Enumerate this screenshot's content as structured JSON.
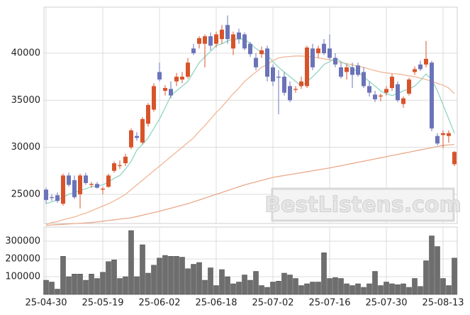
{
  "chart_data": [
    {
      "type": "candlestick",
      "watermark": "BestListens.com",
      "up_color": "#d9532a",
      "down_color": "#6b74b8",
      "ylim": [
        21900,
        44900
      ],
      "yticks": [
        25000,
        30000,
        35000,
        40000
      ],
      "grid": true,
      "open": [
        25500,
        24700,
        24900,
        24000,
        27000,
        26500,
        25000,
        27000,
        26000,
        26100,
        25500,
        25800,
        27500,
        28000,
        28300,
        30000,
        31200,
        30500,
        32500,
        34000,
        38000,
        36000,
        36200,
        37000,
        37200,
        37500,
        40500,
        41000,
        41000,
        41800,
        41000,
        41500,
        43000,
        40500,
        42200,
        42000,
        41000,
        39500,
        39900,
        40500,
        38500,
        37500,
        37500,
        36500,
        36100,
        36500,
        36500,
        40500,
        40000,
        41000,
        40500,
        39500,
        38500,
        38000,
        38500,
        38700,
        38000,
        36500,
        35600,
        35400,
        35800,
        36300,
        36700,
        34600,
        35700,
        38000,
        38800,
        38800,
        39000,
        31200,
        31300,
        31200,
        28200
      ],
      "high": [
        25700,
        25000,
        25200,
        27200,
        27300,
        27000,
        27200,
        27300,
        26300,
        26300,
        25800,
        27200,
        28500,
        28600,
        29300,
        32000,
        31600,
        33200,
        34700,
        36800,
        39000,
        36600,
        37000,
        37900,
        38000,
        39500,
        41000,
        41800,
        42000,
        42200,
        42300,
        43000,
        44000,
        42300,
        42600,
        42200,
        41200,
        40000,
        40700,
        40800,
        38800,
        38200,
        38000,
        37000,
        36500,
        37500,
        40800,
        41000,
        40800,
        41500,
        42000,
        40000,
        39000,
        38800,
        39000,
        39000,
        38500,
        37000,
        36000,
        35700,
        36500,
        37800,
        37000,
        35400,
        37400,
        38600,
        39200,
        41300,
        39200,
        31500,
        31800,
        31800,
        29600
      ],
      "low": [
        24000,
        24300,
        24100,
        23800,
        25800,
        24500,
        23500,
        26000,
        25700,
        25600,
        25000,
        25700,
        27300,
        27700,
        28000,
        29800,
        30700,
        30300,
        32200,
        33800,
        37000,
        35500,
        35200,
        36500,
        36800,
        37300,
        39800,
        40500,
        38500,
        40300,
        40600,
        41000,
        41000,
        39800,
        41000,
        40300,
        39600,
        38200,
        39500,
        37000,
        36500,
        33500,
        35500,
        34800,
        35800,
        36200,
        36300,
        38200,
        39500,
        39800,
        39300,
        38500,
        37300,
        37200,
        36300,
        37500,
        36300,
        35400,
        34800,
        34900,
        35500,
        36000,
        34800,
        34200,
        35500,
        37700,
        38100,
        38500,
        31700,
        30200,
        29900,
        30500,
        28000
      ],
      "close": [
        24400,
        24600,
        24300,
        27000,
        26000,
        24700,
        27000,
        26200,
        26100,
        25700,
        25600,
        27000,
        28300,
        28100,
        29000,
        31800,
        31000,
        33000,
        34500,
        36500,
        37200,
        36300,
        35500,
        37500,
        37500,
        39000,
        40000,
        41600,
        41800,
        40800,
        42000,
        42500,
        41500,
        42000,
        41500,
        40500,
        39900,
        38500,
        40300,
        37500,
        37000,
        37400,
        35800,
        35000,
        36200,
        37000,
        40600,
        38500,
        40500,
        40000,
        39500,
        38800,
        37500,
        38500,
        37700,
        37700,
        36500,
        35800,
        35100,
        35500,
        36200,
        37500,
        35000,
        35200,
        37200,
        38300,
        38300,
        39400,
        32000,
        30400,
        31500,
        31500,
        29500
      ],
      "lines": [
        {
          "color": "#e9a98a",
          "values": [
            21700,
            21740,
            21780,
            21810,
            21850,
            21890,
            21920,
            21960,
            22000,
            22070,
            22140,
            22210,
            22290,
            22360,
            22430,
            22500,
            22640,
            22780,
            22920,
            23060,
            23200,
            23360,
            23520,
            23680,
            23840,
            24000,
            24200,
            24400,
            24600,
            24800,
            25000,
            25200,
            25400,
            25600,
            25800,
            26000,
            26160,
            26320,
            26480,
            26640,
            26800,
            26900,
            27000,
            27100,
            27200,
            27300,
            27400,
            27500,
            27600,
            27700,
            27800,
            27920,
            28040,
            28160,
            28280,
            28400,
            28520,
            28640,
            28760,
            28880,
            29000,
            29120,
            29240,
            29360,
            29480,
            29600,
            29720,
            29840,
            29960,
            30080,
            30200,
            30250,
            30300
          ]
        },
        {
          "color": "#f0b696",
          "values": [
            21800,
            22000,
            22100,
            22300,
            22450,
            22600,
            22800,
            23000,
            23250,
            23500,
            23750,
            24000,
            24300,
            24650,
            25000,
            25500,
            26000,
            26500,
            27000,
            27500,
            28000,
            28500,
            29000,
            29500,
            30000,
            30500,
            31000,
            31700,
            32300,
            33000,
            33700,
            34300,
            35000,
            35700,
            36300,
            37000,
            37500,
            38000,
            38500,
            38800,
            39200,
            39500,
            39600,
            39650,
            39700,
            39700,
            39650,
            39600,
            39500,
            39400,
            39300,
            39150,
            39000,
            38900,
            38750,
            38600,
            38500,
            38300,
            38150,
            38000,
            37900,
            37850,
            37800,
            37700,
            37600,
            37500,
            37350,
            37200,
            37000,
            36800,
            36600,
            36300,
            35700
          ]
        },
        {
          "color": "#8fd6c4",
          "values": [
            24000,
            24200,
            24400,
            24700,
            25000,
            25200,
            25400,
            25600,
            25800,
            25900,
            26000,
            26300,
            26700,
            27000,
            27700,
            28500,
            29700,
            30300,
            31000,
            32000,
            33000,
            34200,
            35500,
            36000,
            36500,
            37000,
            38000,
            39000,
            39600,
            40200,
            40800,
            41000,
            41300,
            41500,
            41500,
            41500,
            41000,
            40500,
            40100,
            39800,
            39100,
            38500,
            38000,
            37500,
            37000,
            36500,
            37000,
            37500,
            38100,
            38800,
            39100,
            39500,
            39100,
            38800,
            38400,
            38000,
            37500,
            37000,
            36500,
            36000,
            35700,
            35500,
            35700,
            36000,
            36200,
            36500,
            37100,
            37800,
            37200,
            36000,
            34500,
            33000,
            31500
          ]
        }
      ]
    },
    {
      "type": "bar",
      "color": "#6e6e6e",
      "categories": [
        "25-04-30",
        null,
        null,
        null,
        null,
        null,
        null,
        null,
        null,
        null,
        "25-05-19",
        null,
        null,
        null,
        null,
        null,
        null,
        null,
        null,
        null,
        "25-06-02",
        null,
        null,
        null,
        null,
        null,
        null,
        null,
        null,
        null,
        "25-06-18",
        null,
        null,
        null,
        null,
        null,
        null,
        null,
        null,
        null,
        "25-07-02",
        null,
        null,
        null,
        null,
        null,
        null,
        null,
        null,
        null,
        "25-07-16",
        null,
        null,
        null,
        null,
        null,
        null,
        null,
        null,
        null,
        "25-07-30",
        null,
        null,
        null,
        null,
        null,
        null,
        null,
        null,
        null,
        "25-08-13",
        null,
        null
      ],
      "values": [
        80000,
        70000,
        30000,
        215000,
        100000,
        115000,
        115000,
        80000,
        115000,
        90000,
        125000,
        185000,
        195000,
        90000,
        100000,
        360000,
        100000,
        280000,
        120000,
        165000,
        205000,
        220000,
        215000,
        215000,
        210000,
        145000,
        170000,
        180000,
        80000,
        150000,
        50000,
        140000,
        100000,
        60000,
        70000,
        110000,
        80000,
        130000,
        50000,
        40000,
        70000,
        75000,
        120000,
        110000,
        90000,
        50000,
        60000,
        70000,
        70000,
        235000,
        90000,
        95000,
        90000,
        60000,
        50000,
        60000,
        40000,
        60000,
        130000,
        50000,
        70000,
        60000,
        55000,
        60000,
        40000,
        90000,
        45000,
        190000,
        330000,
        270000,
        90000,
        50000,
        205000
      ],
      "ylim": [
        0,
        380000
      ],
      "yticks": [
        100000,
        200000,
        300000
      ],
      "grid": true
    }
  ]
}
